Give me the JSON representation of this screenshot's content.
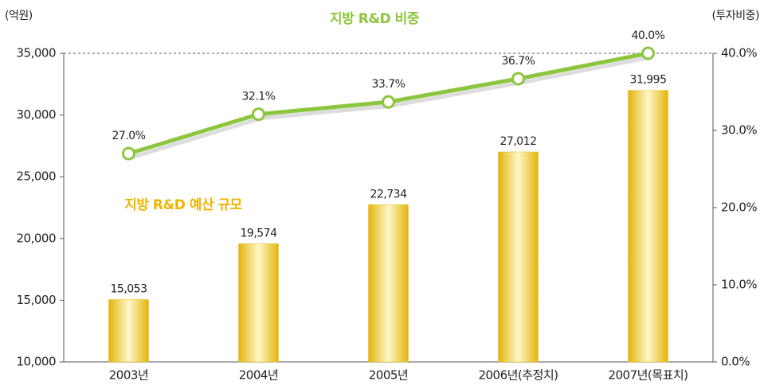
{
  "chart_data": {
    "type": "combo",
    "categories": [
      "2003년",
      "2004년",
      "2005년",
      "2006년(추정치)",
      "2007년(목표치)"
    ],
    "y_label": "(억원)",
    "y2_label": "(투자비중)",
    "ylim": [
      10000,
      35000
    ],
    "yticks": [
      {
        "value": 10000,
        "label": "10,000"
      },
      {
        "value": 15000,
        "label": "15,000"
      },
      {
        "value": 20000,
        "label": "20,000"
      },
      {
        "value": 25000,
        "label": "25,000"
      },
      {
        "value": 30000,
        "label": "30,000"
      },
      {
        "value": 35000,
        "label": "35,000"
      }
    ],
    "y2lim": [
      0,
      40
    ],
    "y2ticks": [
      {
        "value": 0,
        "label": "0.0%"
      },
      {
        "value": 10,
        "label": "10.0%"
      },
      {
        "value": 20,
        "label": "20.0%"
      },
      {
        "value": 30,
        "label": "30.0%"
      },
      {
        "value": 40,
        "label": "40.0%"
      }
    ],
    "series": [
      {
        "name": "지방 R&D 예산 규모",
        "type": "bar",
        "color": "#e9bf12",
        "label_color": "#f0b400",
        "values": [
          15053,
          19574,
          22734,
          27012,
          31995
        ],
        "value_labels": [
          "15,053",
          "19,574",
          "22,734",
          "27,012",
          "31,995"
        ]
      },
      {
        "name": "지방 R&D 비중",
        "type": "line",
        "axis": "y2",
        "color": "#8cc63e",
        "values": [
          27.0,
          32.1,
          33.7,
          36.7,
          40.0
        ],
        "value_labels": [
          "27.0%",
          "32.1%",
          "33.7%",
          "36.7%",
          "40.0%"
        ]
      }
    ]
  }
}
